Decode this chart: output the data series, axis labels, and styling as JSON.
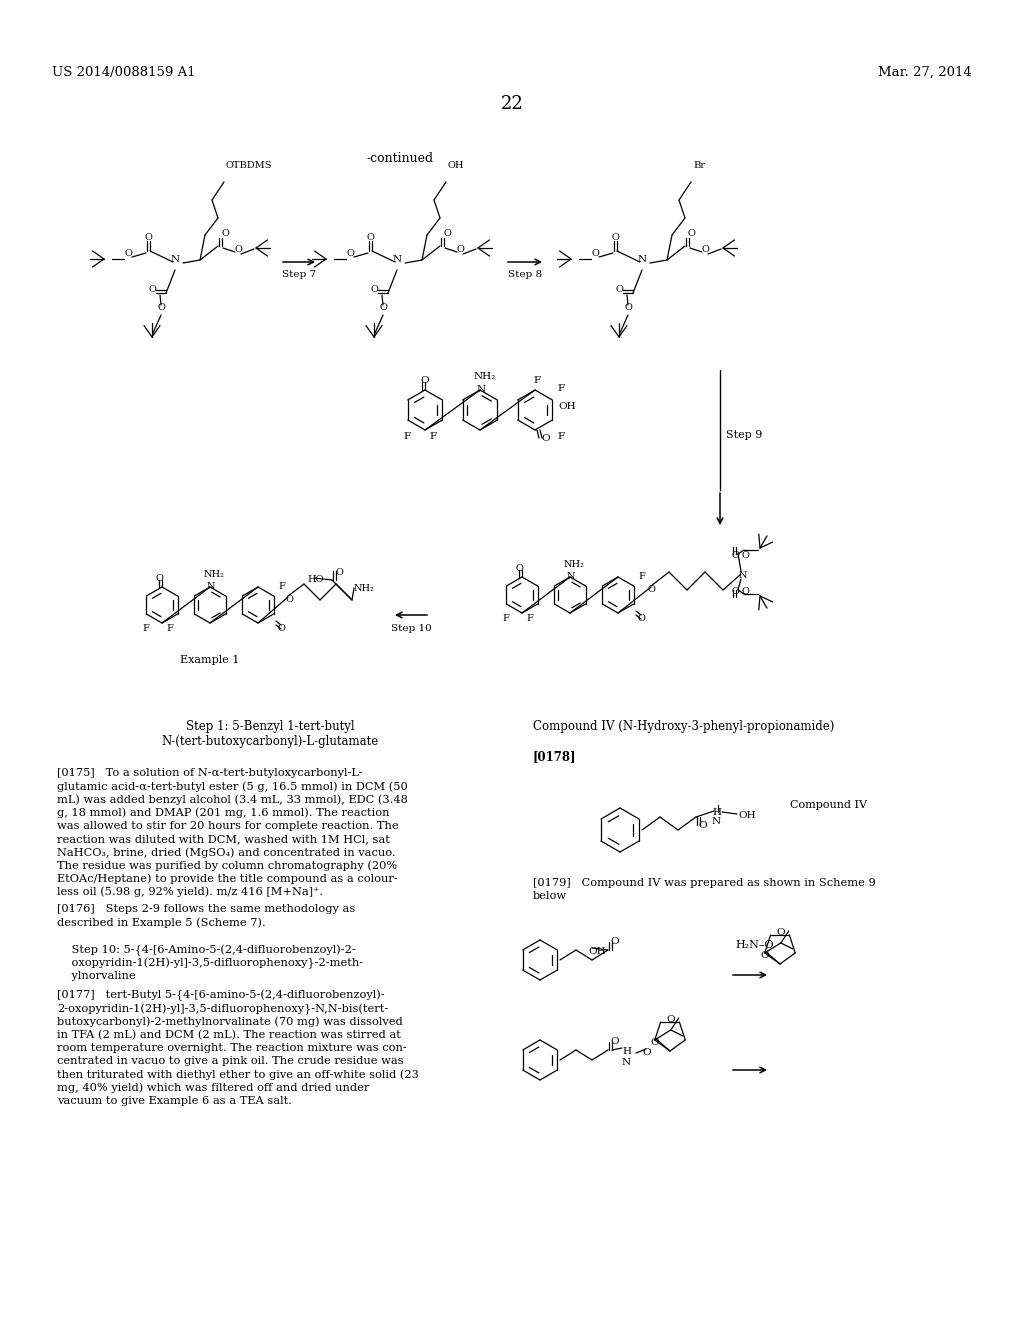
{
  "bg_color": "#ffffff",
  "header_left": "US 2014/0088159 A1",
  "header_right": "Mar. 27, 2014",
  "page_number": "22",
  "continued_label": "-continued",
  "step7_label": "Step 7",
  "step8_label": "Step 8",
  "step9_label": "Step 9",
  "step10_label": "Step 10",
  "example1_label": "Example 1",
  "compound_iv_header": "Compound IV (N-Hydroxy-3-phenyl-propionamide)",
  "compound_iv_note": "Compound IV",
  "ref0178": "[0178]",
  "ref0175": "[0175]",
  "ref0176": "[0176]",
  "ref0177": "[0177]",
  "ref0179": "[0179]",
  "step1_line1": "Step 1: 5-Benzyl 1-tert-butyl",
  "step1_line2": "N-(tert-butoxycarbonyl)-L-glutamate",
  "para0175_lines": [
    "[0175]   To a solution of N-α-tert-butyloxycarbonyl-L-",
    "glutamic acid-α-tert-butyl ester (5 g, 16.5 mmol) in DCM (50",
    "mL) was added benzyl alcohol (3.4 mL, 33 mmol), EDC (3.48",
    "g, 18 mmol) and DMAP (201 mg, 1.6 mmol). The reaction",
    "was allowed to stir for 20 hours for complete reaction. The",
    "reaction was diluted with DCM, washed with 1M HCl, sat",
    "NaHCO₃, brine, dried (MgSO₄) and concentrated in vacuo.",
    "The residue was purified by column chromatography (20%",
    "EtOAc/Heptane) to provide the title compound as a colour-",
    "less oil (5.98 g, 92% yield). m/z 416 [M+Na]⁺."
  ],
  "para0176_lines": [
    "[0176]   Steps 2-9 follows the same methodology as",
    "described in Example 5 (Scheme 7)."
  ],
  "step10_line1": "    Step 10: 5-{4-[6-Amino-5-(2,4-difluorobenzoyl)-2-",
  "step10_line2": "    oxopyridin-1(2H)-yl]-3,5-difluorophenoxy}-2-meth-",
  "step10_line3": "    ylnorvaline",
  "para0177_lines": [
    "[0177]   tert-Butyl 5-{4-[6-amino-5-(2,4-difluorobenzoyl)-",
    "2-oxopyridin-1(2H)-yl]-3,5-difluorophenoxy}-N,N-bis(tert-",
    "butoxycarbonyl)-2-methylnorvalinate (70 mg) was dissolved",
    "in TFA (2 mL) and DCM (2 mL). The reaction was stirred at",
    "room temperature overnight. The reaction mixture was con-",
    "centrated in vacuo to give a pink oil. The crude residue was",
    "then triturated with diethyl ether to give an off-white solid (23",
    "mg, 40% yield) which was filtered off and dried under",
    "vacuum to give Example 6 as a TEA salt."
  ],
  "para0179_line1": "[0179]   Compound IV was prepared as shown in Scheme 9",
  "para0179_line2": "below"
}
